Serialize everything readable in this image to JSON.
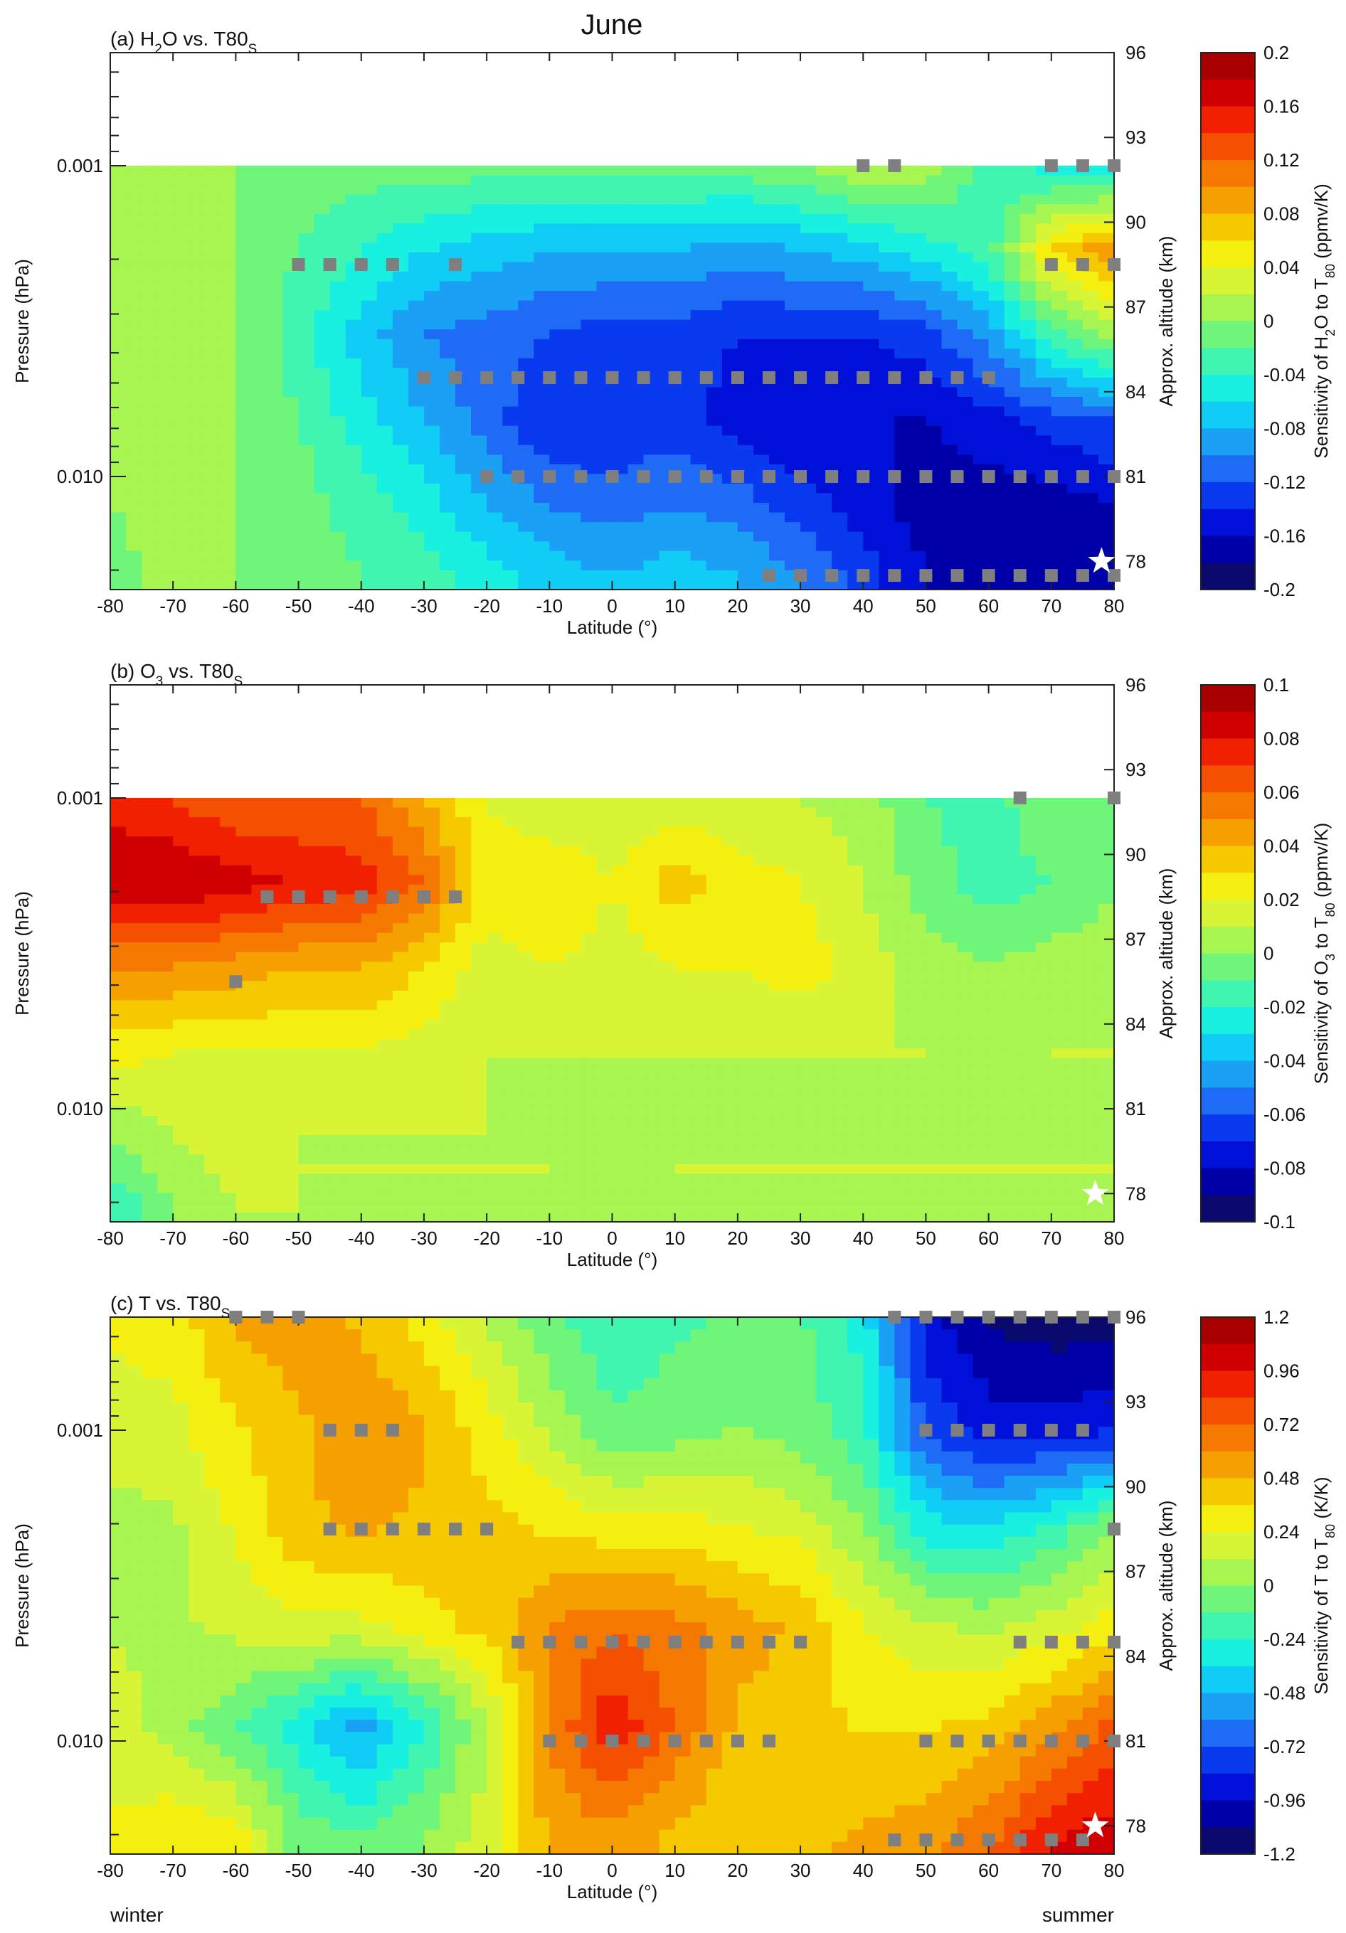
{
  "figure": {
    "title": "June",
    "footer_left": "winter",
    "footer_right": "summer"
  },
  "chart_data": [
    {
      "type": "heatmap",
      "panel_prefix": "(a) H",
      "panel_sub1": "2",
      "panel_mid": "O vs. T80",
      "panel_sub2": "S",
      "xlabel": "Latitude (°)",
      "xticks": [
        -80,
        -70,
        -60,
        -50,
        -40,
        -30,
        -20,
        -10,
        0,
        10,
        20,
        30,
        40,
        50,
        60,
        70,
        80
      ],
      "xlim": [
        -80,
        80
      ],
      "ylabel": "Pressure (hPa)",
      "yticks": [
        "0.001",
        "0.010"
      ],
      "ytick_values": [
        0.001,
        0.01
      ],
      "yscale": "log",
      "ylim_hpa": [
        0.02,
        0.0002
      ],
      "alt_label": "Approx. altitude (km)",
      "alt_ticks": [
        96,
        93,
        90,
        87,
        84,
        81,
        78
      ],
      "colorbar_label_pre": "Sensitivity of H",
      "colorbar_label_sub1": "2",
      "colorbar_label_mid": "O to T",
      "colorbar_label_sub2": "80",
      "colorbar_label_post": " (ppmv/K)",
      "colorbar_ticks": [
        "0.2",
        "0.16",
        "0.12",
        "0.08",
        "0.04",
        "0",
        "-0.04",
        "-0.08",
        "-0.12",
        "-0.16",
        "-0.2"
      ],
      "vmin": -0.2,
      "vmax": 0.2,
      "data_top_km": 92,
      "grid_lat": [
        -80,
        -70,
        -60,
        -50,
        -40,
        -30,
        -20,
        -10,
        0,
        10,
        20,
        30,
        40,
        50,
        60,
        70,
        80
      ],
      "grid_km": [
        92,
        89,
        86,
        83,
        80,
        77.5
      ],
      "z": [
        [
          0.01,
          0.0,
          0.0,
          -0.01,
          -0.01,
          -0.01,
          -0.01,
          -0.01,
          -0.01,
          -0.01,
          -0.01,
          0.0,
          0.02,
          0.01,
          -0.03,
          -0.05,
          -0.06
        ],
        [
          0.01,
          0.01,
          0.0,
          -0.02,
          -0.04,
          -0.06,
          -0.07,
          -0.08,
          -0.08,
          -0.08,
          -0.09,
          -0.08,
          -0.07,
          -0.05,
          -0.03,
          0.06,
          0.1
        ],
        [
          0.02,
          0.02,
          0.0,
          -0.03,
          -0.07,
          -0.1,
          -0.11,
          -0.12,
          -0.13,
          -0.13,
          -0.14,
          -0.14,
          -0.14,
          -0.13,
          -0.09,
          -0.03,
          0.01
        ],
        [
          0.02,
          0.01,
          0.0,
          -0.02,
          -0.05,
          -0.08,
          -0.11,
          -0.14,
          -0.14,
          -0.13,
          -0.15,
          -0.16,
          -0.16,
          -0.16,
          -0.15,
          -0.13,
          -0.12
        ],
        [
          0.0,
          0.01,
          0.0,
          -0.01,
          -0.03,
          -0.05,
          -0.08,
          -0.1,
          -0.11,
          -0.1,
          -0.11,
          -0.13,
          -0.15,
          -0.17,
          -0.17,
          -0.17,
          -0.16
        ],
        [
          -0.01,
          0.01,
          0.0,
          -0.01,
          -0.02,
          -0.03,
          -0.05,
          -0.07,
          -0.08,
          -0.07,
          -0.08,
          -0.1,
          -0.13,
          -0.16,
          -0.17,
          -0.17,
          -0.17
        ]
      ],
      "markers": [
        {
          "lat": 40,
          "km": 92
        },
        {
          "lat": 45,
          "km": 92
        },
        {
          "lat": 70,
          "km": 92
        },
        {
          "lat": 75,
          "km": 92
        },
        {
          "lat": 80,
          "km": 92
        },
        {
          "lat": -50,
          "km": 88.5
        },
        {
          "lat": -45,
          "km": 88.5
        },
        {
          "lat": -40,
          "km": 88.5
        },
        {
          "lat": -35,
          "km": 88.5
        },
        {
          "lat": -25,
          "km": 88.5
        },
        {
          "lat": 70,
          "km": 88.5
        },
        {
          "lat": 75,
          "km": 88.5
        },
        {
          "lat": 80,
          "km": 88.5
        },
        {
          "lat": -30,
          "km": 84.5
        },
        {
          "lat": -25,
          "km": 84.5
        },
        {
          "lat": -20,
          "km": 84.5
        },
        {
          "lat": -15,
          "km": 84.5
        },
        {
          "lat": -10,
          "km": 84.5
        },
        {
          "lat": -5,
          "km": 84.5
        },
        {
          "lat": 0,
          "km": 84.5
        },
        {
          "lat": 5,
          "km": 84.5
        },
        {
          "lat": 10,
          "km": 84.5
        },
        {
          "lat": 15,
          "km": 84.5
        },
        {
          "lat": 20,
          "km": 84.5
        },
        {
          "lat": 25,
          "km": 84.5
        },
        {
          "lat": 30,
          "km": 84.5
        },
        {
          "lat": 35,
          "km": 84.5
        },
        {
          "lat": 40,
          "km": 84.5
        },
        {
          "lat": 45,
          "km": 84.5
        },
        {
          "lat": 50,
          "km": 84.5
        },
        {
          "lat": 55,
          "km": 84.5
        },
        {
          "lat": 60,
          "km": 84.5
        },
        {
          "lat": -20,
          "km": 81
        },
        {
          "lat": -15,
          "km": 81
        },
        {
          "lat": -10,
          "km": 81
        },
        {
          "lat": -5,
          "km": 81
        },
        {
          "lat": 0,
          "km": 81
        },
        {
          "lat": 5,
          "km": 81
        },
        {
          "lat": 10,
          "km": 81
        },
        {
          "lat": 15,
          "km": 81
        },
        {
          "lat": 20,
          "km": 81
        },
        {
          "lat": 25,
          "km": 81
        },
        {
          "lat": 30,
          "km": 81
        },
        {
          "lat": 35,
          "km": 81
        },
        {
          "lat": 40,
          "km": 81
        },
        {
          "lat": 45,
          "km": 81
        },
        {
          "lat": 50,
          "km": 81
        },
        {
          "lat": 55,
          "km": 81
        },
        {
          "lat": 60,
          "km": 81
        },
        {
          "lat": 65,
          "km": 81
        },
        {
          "lat": 70,
          "km": 81
        },
        {
          "lat": 75,
          "km": 81
        },
        {
          "lat": 80,
          "km": 81
        },
        {
          "lat": 25,
          "km": 77.5
        },
        {
          "lat": 30,
          "km": 77.5
        },
        {
          "lat": 35,
          "km": 77.5
        },
        {
          "lat": 40,
          "km": 77.5
        },
        {
          "lat": 45,
          "km": 77.5
        },
        {
          "lat": 50,
          "km": 77.5
        },
        {
          "lat": 55,
          "km": 77.5
        },
        {
          "lat": 60,
          "km": 77.5
        },
        {
          "lat": 65,
          "km": 77.5
        },
        {
          "lat": 70,
          "km": 77.5
        },
        {
          "lat": 75,
          "km": 77.5
        },
        {
          "lat": 80,
          "km": 77.5
        }
      ],
      "star": {
        "lat": 78,
        "km": 78
      }
    },
    {
      "type": "heatmap",
      "panel_prefix": "(b) O",
      "panel_sub1": "3",
      "panel_mid": " vs. T80",
      "panel_sub2": "S",
      "xlabel": "Latitude (°)",
      "xticks": [
        -80,
        -70,
        -60,
        -50,
        -40,
        -30,
        -20,
        -10,
        0,
        10,
        20,
        30,
        40,
        50,
        60,
        70,
        80
      ],
      "xlim": [
        -80,
        80
      ],
      "ylabel": "Pressure (hPa)",
      "yticks": [
        "0.001",
        "0.010"
      ],
      "ytick_values": [
        0.001,
        0.01
      ],
      "yscale": "log",
      "ylim_hpa": [
        0.02,
        0.0002
      ],
      "alt_label": "Approx. altitude (km)",
      "alt_ticks": [
        96,
        93,
        90,
        87,
        84,
        81,
        78
      ],
      "colorbar_label_pre": "Sensitivity of O",
      "colorbar_label_sub1": "3",
      "colorbar_label_mid": " to T",
      "colorbar_label_sub2": "80",
      "colorbar_label_post": " (ppmv/K)",
      "colorbar_ticks": [
        "0.1",
        "0.08",
        "0.06",
        "0.04",
        "0.02",
        "0",
        "-0.02",
        "-0.04",
        "-0.06",
        "-0.08",
        "-0.1"
      ],
      "vmin": -0.1,
      "vmax": 0.1,
      "data_top_km": 92,
      "grid_lat": [
        -80,
        -70,
        -60,
        -50,
        -40,
        -30,
        -20,
        -10,
        0,
        10,
        20,
        30,
        40,
        50,
        60,
        70,
        80
      ],
      "grid_km": [
        92,
        89,
        86,
        83,
        80,
        77.5
      ],
      "z": [
        [
          0.075,
          0.07,
          0.06,
          0.06,
          0.06,
          0.04,
          0.02,
          0.01,
          0.01,
          0.015,
          0.01,
          0.01,
          0.005,
          -0.01,
          -0.015,
          0.0,
          0.0
        ],
        [
          0.09,
          0.09,
          0.085,
          0.08,
          0.075,
          0.06,
          0.025,
          0.03,
          0.02,
          0.035,
          0.025,
          0.02,
          0.01,
          -0.005,
          -0.015,
          -0.01,
          0.0
        ],
        [
          0.05,
          0.05,
          0.045,
          0.04,
          0.04,
          0.03,
          0.015,
          0.02,
          0.015,
          0.02,
          0.02,
          0.025,
          0.015,
          0.005,
          0.0,
          0.005,
          0.005
        ],
        [
          0.025,
          0.02,
          0.02,
          0.02,
          0.02,
          0.015,
          0.01,
          0.01,
          0.01,
          0.01,
          0.01,
          0.01,
          0.01,
          0.01,
          0.005,
          0.01,
          0.01
        ],
        [
          0.0,
          0.01,
          0.015,
          0.01,
          0.01,
          0.01,
          0.01,
          0.01,
          0.01,
          0.01,
          0.01,
          0.01,
          0.01,
          0.01,
          0.01,
          0.01,
          0.01
        ],
        [
          -0.02,
          0.0,
          0.01,
          0.01,
          0.01,
          0.01,
          0.01,
          0.01,
          0.005,
          0.01,
          0.01,
          0.01,
          0.01,
          0.01,
          0.01,
          0.01,
          0.01
        ]
      ],
      "markers": [
        {
          "lat": 65,
          "km": 92
        },
        {
          "lat": 80,
          "km": 92
        },
        {
          "lat": -55,
          "km": 88.5
        },
        {
          "lat": -50,
          "km": 88.5
        },
        {
          "lat": -45,
          "km": 88.5
        },
        {
          "lat": -40,
          "km": 88.5
        },
        {
          "lat": -35,
          "km": 88.5
        },
        {
          "lat": -30,
          "km": 88.5
        },
        {
          "lat": -25,
          "km": 88.5
        },
        {
          "lat": -60,
          "km": 85.5
        }
      ],
      "star": {
        "lat": 77,
        "km": 78
      }
    },
    {
      "type": "heatmap",
      "panel_prefix": "(c) T vs. T80",
      "panel_sub1": "",
      "panel_mid": "",
      "panel_sub2": "S",
      "xlabel": "Latitude (°)",
      "xticks": [
        -80,
        -70,
        -60,
        -50,
        -40,
        -30,
        -20,
        -10,
        0,
        10,
        20,
        30,
        40,
        50,
        60,
        70,
        80
      ],
      "xlim": [
        -80,
        80
      ],
      "ylabel": "Pressure (hPa)",
      "yticks": [
        "0.001",
        "0.010"
      ],
      "ytick_values": [
        0.001,
        0.01
      ],
      "yscale": "log",
      "ylim_hpa": [
        0.02,
        0.0002
      ],
      "alt_label": "Approx. altitude (km)",
      "alt_ticks": [
        96,
        93,
        90,
        87,
        84,
        81,
        78
      ],
      "colorbar_label_pre": "Sensitivity of T to T",
      "colorbar_label_sub1": "80",
      "colorbar_label_mid": " (K/K)",
      "colorbar_label_sub2": "",
      "colorbar_label_post": "",
      "colorbar_ticks": [
        "1.2",
        "0.96",
        "0.72",
        "0.48",
        "0.24",
        "0",
        "-0.24",
        "-0.48",
        "-0.72",
        "-0.96",
        "-1.2"
      ],
      "vmin": -1.2,
      "vmax": 1.2,
      "data_top_km": 96,
      "grid_lat": [
        -80,
        -70,
        -60,
        -50,
        -40,
        -30,
        -20,
        -10,
        0,
        10,
        20,
        30,
        40,
        50,
        60,
        70,
        80
      ],
      "grid_km": [
        96,
        92,
        88.5,
        85,
        81.5,
        77.5
      ],
      "z": [
        [
          0.25,
          0.3,
          0.5,
          0.55,
          0.45,
          0.3,
          0.1,
          -0.1,
          -0.2,
          -0.15,
          -0.1,
          -0.1,
          -0.3,
          -0.9,
          -1.1,
          -1.15,
          -1.15
        ],
        [
          0.2,
          0.2,
          0.35,
          0.45,
          0.6,
          0.5,
          0.3,
          0.1,
          -0.1,
          -0.05,
          0.0,
          -0.05,
          -0.2,
          -0.75,
          -0.9,
          -0.9,
          -0.85
        ],
        [
          0.05,
          0.1,
          0.25,
          0.45,
          0.5,
          0.45,
          0.4,
          0.35,
          0.3,
          0.3,
          0.25,
          0.2,
          0.0,
          -0.3,
          -0.35,
          -0.2,
          0.0
        ],
        [
          0.1,
          0.1,
          0.15,
          0.2,
          0.2,
          0.3,
          0.4,
          0.6,
          0.7,
          0.65,
          0.55,
          0.45,
          0.25,
          0.15,
          0.1,
          0.2,
          0.3
        ],
        [
          0.2,
          0.05,
          -0.1,
          -0.3,
          -0.55,
          -0.25,
          0.1,
          0.6,
          0.95,
          0.7,
          0.45,
          0.4,
          0.35,
          0.35,
          0.4,
          0.55,
          0.75
        ],
        [
          0.25,
          0.35,
          0.3,
          -0.05,
          -0.1,
          0.0,
          0.2,
          0.5,
          0.55,
          0.45,
          0.35,
          0.45,
          0.5,
          0.55,
          0.7,
          0.95,
          1.05
        ]
      ],
      "markers": [
        {
          "lat": -60,
          "km": 96
        },
        {
          "lat": -55,
          "km": 96
        },
        {
          "lat": -50,
          "km": 96
        },
        {
          "lat": 45,
          "km": 96
        },
        {
          "lat": 50,
          "km": 96
        },
        {
          "lat": 55,
          "km": 96
        },
        {
          "lat": 60,
          "km": 96
        },
        {
          "lat": 65,
          "km": 96
        },
        {
          "lat": 70,
          "km": 96
        },
        {
          "lat": 75,
          "km": 96
        },
        {
          "lat": 80,
          "km": 96
        },
        {
          "lat": -45,
          "km": 92
        },
        {
          "lat": -40,
          "km": 92
        },
        {
          "lat": -35,
          "km": 92
        },
        {
          "lat": 50,
          "km": 92
        },
        {
          "lat": 55,
          "km": 92
        },
        {
          "lat": 60,
          "km": 92
        },
        {
          "lat": 65,
          "km": 92
        },
        {
          "lat": 70,
          "km": 92
        },
        {
          "lat": 75,
          "km": 92
        },
        {
          "lat": -45,
          "km": 88.5
        },
        {
          "lat": -40,
          "km": 88.5
        },
        {
          "lat": -35,
          "km": 88.5
        },
        {
          "lat": -30,
          "km": 88.5
        },
        {
          "lat": -25,
          "km": 88.5
        },
        {
          "lat": -20,
          "km": 88.5
        },
        {
          "lat": 80,
          "km": 88.5
        },
        {
          "lat": -15,
          "km": 84.5
        },
        {
          "lat": -10,
          "km": 84.5
        },
        {
          "lat": -5,
          "km": 84.5
        },
        {
          "lat": 0,
          "km": 84.5
        },
        {
          "lat": 5,
          "km": 84.5
        },
        {
          "lat": 10,
          "km": 84.5
        },
        {
          "lat": 15,
          "km": 84.5
        },
        {
          "lat": 20,
          "km": 84.5
        },
        {
          "lat": 25,
          "km": 84.5
        },
        {
          "lat": 30,
          "km": 84.5
        },
        {
          "lat": 65,
          "km": 84.5
        },
        {
          "lat": 70,
          "km": 84.5
        },
        {
          "lat": 75,
          "km": 84.5
        },
        {
          "lat": 80,
          "km": 84.5
        },
        {
          "lat": -10,
          "km": 81
        },
        {
          "lat": -5,
          "km": 81
        },
        {
          "lat": 0,
          "km": 81
        },
        {
          "lat": 5,
          "km": 81
        },
        {
          "lat": 10,
          "km": 81
        },
        {
          "lat": 15,
          "km": 81
        },
        {
          "lat": 20,
          "km": 81
        },
        {
          "lat": 25,
          "km": 81
        },
        {
          "lat": 50,
          "km": 81
        },
        {
          "lat": 55,
          "km": 81
        },
        {
          "lat": 60,
          "km": 81
        },
        {
          "lat": 65,
          "km": 81
        },
        {
          "lat": 70,
          "km": 81
        },
        {
          "lat": 75,
          "km": 81
        },
        {
          "lat": 80,
          "km": 81
        },
        {
          "lat": 45,
          "km": 77.5
        },
        {
          "lat": 50,
          "km": 77.5
        },
        {
          "lat": 55,
          "km": 77.5
        },
        {
          "lat": 60,
          "km": 77.5
        },
        {
          "lat": 65,
          "km": 77.5
        },
        {
          "lat": 70,
          "km": 77.5
        },
        {
          "lat": 75,
          "km": 77.5
        }
      ],
      "star": {
        "lat": 77,
        "km": 78
      }
    }
  ],
  "colormap": [
    "#0a0a6e",
    "#0000a8",
    "#0010d8",
    "#0a3af0",
    "#1e6cf5",
    "#1aa0f5",
    "#10cdf5",
    "#18f0e0",
    "#40f5b0",
    "#6ff57a",
    "#a6f550",
    "#d8f535",
    "#f5ef10",
    "#f5c800",
    "#f5a000",
    "#f57800",
    "#f55000",
    "#f02000",
    "#d00000",
    "#a80000"
  ],
  "marker_color": "#7f7f7f"
}
